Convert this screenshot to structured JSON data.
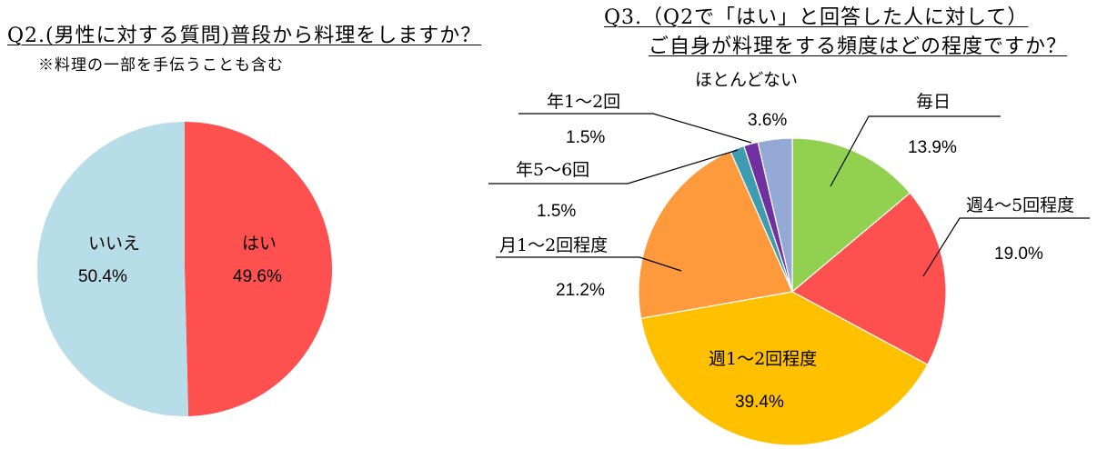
{
  "chart_data": [
    {
      "type": "pie",
      "title": "Q2.(男性に対する質問)普段から料理をしますか？",
      "subtitle": "※料理の一部を手伝うことも含む",
      "unit": "%",
      "slices": [
        {
          "label": "はい",
          "value": 49.6,
          "color": "#ff5050"
        },
        {
          "label": "いいえ",
          "value": 50.4,
          "color": "#b7dde8"
        }
      ]
    },
    {
      "type": "pie",
      "title": [
        "Q3.（Q2で「はい」と回答した人に対して）",
        "ご自身が料理をする頻度はどの程度ですか？"
      ],
      "unit": "%",
      "slices": [
        {
          "label": "毎日",
          "value": 13.9,
          "color": "#92d050"
        },
        {
          "label": "週4～5回程度",
          "value": 19.0,
          "color": "#ff5050"
        },
        {
          "label": "週1～2回程度",
          "value": 39.4,
          "color": "#ffc000"
        },
        {
          "label": "月1～2回程度",
          "value": 21.2,
          "color": "#ff9a3c"
        },
        {
          "label": "年5～6回",
          "value": 1.5,
          "color": "#3f9bb0"
        },
        {
          "label": "年1～2回",
          "value": 1.5,
          "color": "#7030a0"
        },
        {
          "label": "ほとんどない",
          "value": 3.6,
          "color": "#95a9d6"
        }
      ]
    }
  ]
}
